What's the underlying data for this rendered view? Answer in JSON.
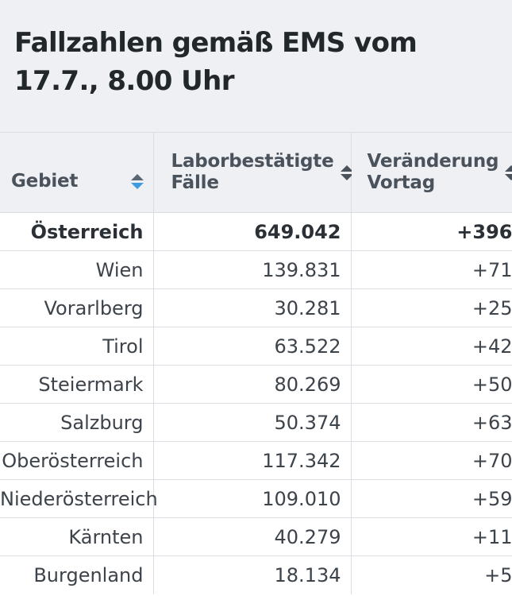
{
  "title": "Fallzahlen gemäß EMS vom 17.7., 8.00 Uhr",
  "columns": [
    {
      "label": "Gebiet",
      "sort_icon": "sort-active-icon"
    },
    {
      "label": "Laborbestätigte Fälle",
      "sort_icon": "sort-icon"
    },
    {
      "label": "Veränderung Vortag",
      "sort_icon": "sort-icon"
    }
  ],
  "rows": [
    {
      "gebiet": "Österreich",
      "faelle": "649.042",
      "veraenderung": "+396"
    },
    {
      "gebiet": "Wien",
      "faelle": "139.831",
      "veraenderung": "+71"
    },
    {
      "gebiet": "Vorarlberg",
      "faelle": "30.281",
      "veraenderung": "+25"
    },
    {
      "gebiet": "Tirol",
      "faelle": "63.522",
      "veraenderung": "+42"
    },
    {
      "gebiet": "Steiermark",
      "faelle": "80.269",
      "veraenderung": "+50"
    },
    {
      "gebiet": "Salzburg",
      "faelle": "50.374",
      "veraenderung": "+63"
    },
    {
      "gebiet": "Oberösterreich",
      "faelle": "117.342",
      "veraenderung": "+70"
    },
    {
      "gebiet": "Niederösterreich",
      "faelle": "109.010",
      "veraenderung": "+59"
    },
    {
      "gebiet": "Kärnten",
      "faelle": "40.279",
      "veraenderung": "+11"
    },
    {
      "gebiet": "Burgenland",
      "faelle": "18.134",
      "veraenderung": "+5"
    }
  ],
  "colors": {
    "header_bg": "#eef0f4",
    "sort_active": "#3f9be0",
    "text": "#3c434a"
  }
}
